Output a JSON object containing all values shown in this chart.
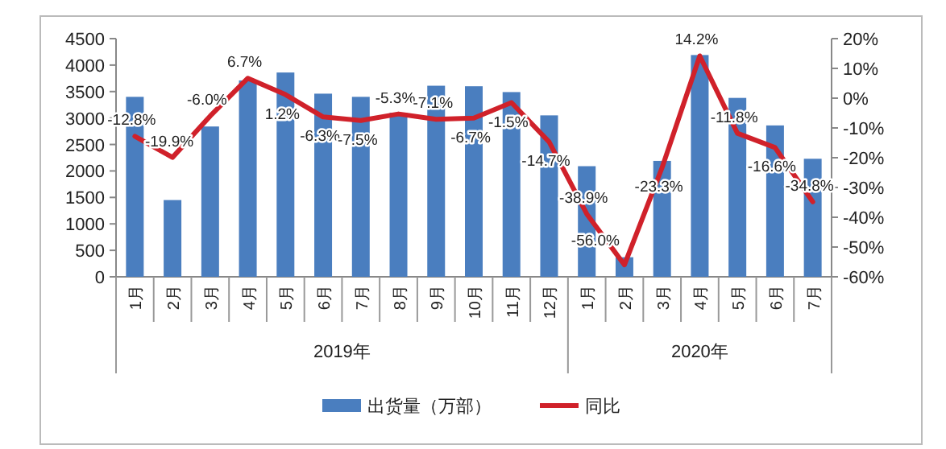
{
  "chart_data": {
    "type": "bar",
    "categories": [
      "1月",
      "2月",
      "3月",
      "4月",
      "5月",
      "6月",
      "7月",
      "8月",
      "9月",
      "10月",
      "11月",
      "12月",
      "1月",
      "2月",
      "3月",
      "4月",
      "5月",
      "6月",
      "7月"
    ],
    "annotations": [
      "2019年",
      "2020年"
    ],
    "series": [
      {
        "name": "出货量（万部）",
        "color": "#4a7ebf",
        "values": [
          3400,
          1450,
          2840,
          3710,
          3860,
          3460,
          3400,
          3100,
          3610,
          3600,
          3490,
          3050,
          2090,
          370,
          2190,
          4190,
          3380,
          2860,
          2230
        ]
      },
      {
        "name": "同比",
        "type": "line",
        "axis": "y2",
        "color": "#d0212a",
        "values": [
          -12.8,
          -19.9,
          -6.0,
          6.7,
          1.2,
          -6.3,
          -7.5,
          -5.3,
          -7.1,
          -6.7,
          -1.5,
          -14.7,
          -38.9,
          -56.0,
          -23.3,
          14.2,
          -11.8,
          -16.6,
          -34.8
        ],
        "value_labels": [
          "-12.8%",
          "-19.9%",
          "-6.0%",
          "6.7%",
          "1.2%",
          "-6.3%",
          "-7.5%",
          "-5.3%",
          "-7.1%",
          "-6.7%",
          "-1.5%",
          "-14.7%",
          "-38.9%",
          "-56.0%",
          "-23.3%",
          "14.2%",
          "-11.8%",
          "-16.6%",
          "-34.8%"
        ]
      }
    ],
    "ylim": [
      0,
      4500
    ],
    "yticks": [
      0,
      500,
      1000,
      1500,
      2000,
      2500,
      3000,
      3500,
      4000,
      4500
    ],
    "y2lim": [
      -60,
      20
    ],
    "y2ticks": [
      {
        "value": -60,
        "label": "-60%"
      },
      {
        "value": -50,
        "label": "-50%"
      },
      {
        "value": -40,
        "label": "-40%"
      },
      {
        "value": -30,
        "label": "-30%"
      },
      {
        "value": -20,
        "label": "-20%"
      },
      {
        "value": -10,
        "label": "-10%"
      },
      {
        "value": 0,
        "label": "0%"
      },
      {
        "value": 10,
        "label": "10%"
      },
      {
        "value": 20,
        "label": "20%"
      }
    ],
    "legend": "bottom",
    "grid": false
  }
}
